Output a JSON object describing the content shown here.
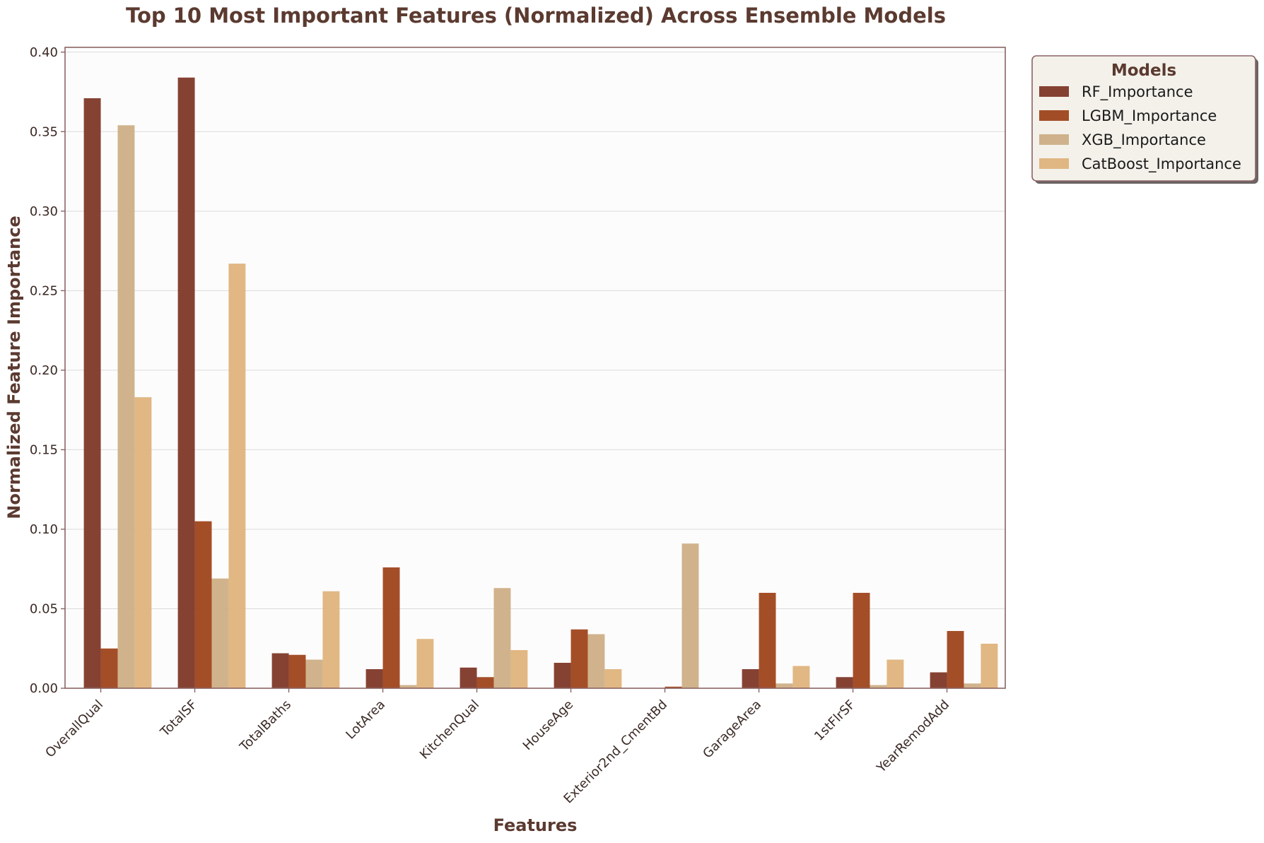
{
  "chart_data": {
    "type": "bar",
    "title": "Top 10 Most Important Features (Normalized) Across Ensemble Models",
    "xlabel": "Features",
    "ylabel": "Normalized Feature Importance",
    "categories": [
      "OverallQual",
      "TotalSF",
      "TotalBaths",
      "LotArea",
      "KitchenQual",
      "HouseAge",
      "Exterior2nd_CmentBd",
      "GarageArea",
      "1stFlrSF",
      "YearRemodAdd"
    ],
    "series": [
      {
        "name": "RF_Importance",
        "color": "#7b3222",
        "values": [
          0.371,
          0.384,
          0.022,
          0.012,
          0.013,
          0.016,
          0.0,
          0.012,
          0.007,
          0.01
        ]
      },
      {
        "name": "LGBM_Importance",
        "color": "#9c3f16",
        "values": [
          0.025,
          0.105,
          0.021,
          0.076,
          0.007,
          0.037,
          0.001,
          0.06,
          0.06,
          0.036
        ]
      },
      {
        "name": "XGB_Importance",
        "color": "#ccad82",
        "values": [
          0.354,
          0.069,
          0.018,
          0.002,
          0.063,
          0.034,
          0.091,
          0.003,
          0.002,
          0.003
        ]
      },
      {
        "name": "CatBoost_Importance",
        "color": "#deb178",
        "values": [
          0.183,
          0.267,
          0.061,
          0.031,
          0.024,
          0.012,
          0.0,
          0.014,
          0.018,
          0.028
        ]
      }
    ],
    "ylim": [
      0,
      0.403
    ],
    "yticks": [
      "0.00",
      "0.05",
      "0.10",
      "0.15",
      "0.20",
      "0.25",
      "0.30",
      "0.35",
      "0.40"
    ],
    "grid": "horizontal",
    "legend": {
      "title": "Models",
      "placement": "outside-top-right"
    },
    "colors": {
      "text": "#5b3a30",
      "axes_border": "#8b6464",
      "plot_background": "#fdfcfc",
      "legend_background": "#f3f1ea",
      "grid": "#dcdcdc"
    }
  }
}
